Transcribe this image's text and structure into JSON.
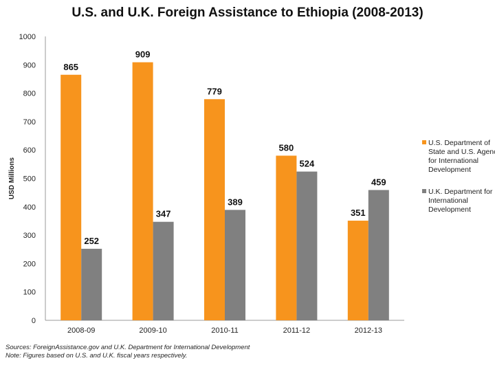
{
  "chart_data": {
    "type": "bar",
    "title": "U.S. and U.K. Foreign Assistance to Ethiopia (2008-2013)",
    "ylabel": "USD Millions",
    "xlabel": "",
    "ylim": [
      0,
      1000
    ],
    "yticks": [
      "0",
      "100",
      "200",
      "300",
      "400",
      "500",
      "600",
      "700",
      "800",
      "900",
      "1000"
    ],
    "categories": [
      "2008-09",
      "2009-10",
      "2010-11",
      "2011-12",
      "2012-13"
    ],
    "series": [
      {
        "name": "U.S. Department of State and U.S. Agency for International Development",
        "legend_lines": [
          "U.S. Department of",
          "State and U.S. Agency",
          "for International",
          "Development"
        ],
        "color": "#f7941d",
        "values": [
          865,
          909,
          779,
          580,
          351
        ]
      },
      {
        "name": "U.K. Department for International Development",
        "legend_lines": [
          "U.K. Department for",
          "International",
          "Development"
        ],
        "color": "#808080",
        "values": [
          252,
          347,
          389,
          524,
          459
        ]
      }
    ],
    "grid": false,
    "legend_position": "right"
  },
  "notes": {
    "sources": "Sources: ForeignAssistance.gov and U.K. Department for International Development",
    "note": "Note: Figures based on U.S. and U.K. fiscal years respectively."
  }
}
